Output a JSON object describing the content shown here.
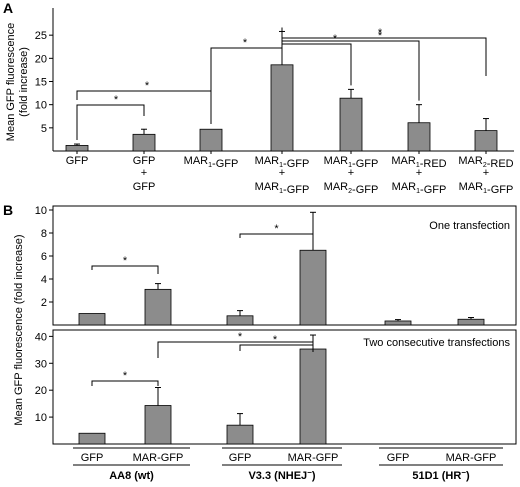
{
  "colors": {
    "bar": "#8c8c8c",
    "line": "#000000"
  },
  "panelA": {
    "letter": "A",
    "ylabel_line1": "Mean GFP fluorescence",
    "ylabel_line2": "(fold increase)",
    "categories": [
      [
        "GFP"
      ],
      [
        "GFP",
        "+",
        "GFP"
      ],
      [
        "MAR₁-GFP"
      ],
      [
        "MAR₁-GFP",
        "+",
        "MAR₁-GFP"
      ],
      [
        "MAR₁-GFP",
        "+",
        "MAR₂-GFP"
      ],
      [
        "MAR₁-RED",
        "+",
        "MAR₁-GFP"
      ],
      [
        "MAR₂-RED",
        "+",
        "MAR₁-GFP"
      ]
    ],
    "significance_mark": "*"
  },
  "panelB": {
    "letter": "B",
    "ylabel": "Mean GFP fluorescence (fold increase)",
    "top_label": "One transfection",
    "bottom_label": "Two consecutive transfections",
    "significance_mark": "*",
    "bar_labels": [
      "GFP",
      "MAR-GFP",
      "GFP",
      "MAR-GFP",
      "GFP",
      "MAR-GFP"
    ],
    "groups": [
      {
        "name": "AA8",
        "suffix": " (wt)",
        "sup": ""
      },
      {
        "name": "V3.3",
        "suffix": " (NHEJ",
        "sup": "−",
        "close": ")"
      },
      {
        "name": "51D1",
        "suffix": " (HR",
        "sup": "−",
        "close": ")"
      }
    ]
  },
  "chart_data": [
    {
      "type": "bar",
      "panel": "A",
      "ylim": [
        0,
        30
      ],
      "yticks": [
        5,
        10,
        15,
        20,
        25
      ],
      "ytick_labels": [
        "5",
        "10",
        "15",
        "20",
        "25"
      ],
      "ylabel": "Mean GFP fluorescence (fold increase)",
      "categories": [
        "GFP",
        "GFP + GFP",
        "MAR1-GFP",
        "MAR1-GFP + MAR1-GFP",
        "MAR1-GFP + MAR2-GFP",
        "MAR1-RED + MAR1-GFP",
        "MAR2-RED + MAR1-GFP"
      ],
      "values": [
        1.2,
        3.6,
        4.7,
        18.6,
        11.4,
        6.1,
        4.4
      ],
      "errors": [
        0.3,
        1.1,
        0,
        7.2,
        1.9,
        3.9,
        2.6
      ],
      "significance": [
        [
          0,
          1
        ],
        [
          0,
          2
        ],
        [
          2,
          3
        ],
        [
          3,
          4
        ],
        [
          3,
          5
        ],
        [
          3,
          6
        ]
      ],
      "grid": false
    },
    {
      "type": "bar",
      "panel": "B-top",
      "title": "One transfection",
      "ylim": [
        0,
        10
      ],
      "yticks": [
        2,
        4,
        6,
        8,
        10
      ],
      "ytick_labels": [
        "2",
        "4",
        "6",
        "8",
        "10"
      ],
      "categories": [
        "AA8 GFP",
        "AA8 MAR-GFP",
        "V3.3 GFP",
        "V3.3 MAR-GFP",
        "51D1 GFP",
        "51D1 MAR-GFP"
      ],
      "values": [
        1.0,
        3.1,
        0.8,
        6.5,
        0.35,
        0.5
      ],
      "errors": [
        0,
        0.5,
        0.45,
        3.3,
        0.12,
        0.15
      ],
      "significance": [
        [
          0,
          1
        ],
        [
          2,
          3
        ]
      ],
      "grid": false
    },
    {
      "type": "bar",
      "panel": "B-bottom",
      "title": "Two consecutive transfections",
      "ylim": [
        0,
        42
      ],
      "yticks": [
        10,
        20,
        30,
        40
      ],
      "ytick_labels": [
        "10",
        "20",
        "30",
        "40"
      ],
      "categories": [
        "AA8 GFP",
        "AA8 MAR-GFP",
        "V3.3 GFP",
        "V3.3 MAR-GFP",
        "51D1 GFP",
        "51D1 MAR-GFP"
      ],
      "values": [
        4,
        14.3,
        7,
        35.3,
        0,
        0
      ],
      "errors": [
        0,
        6.7,
        4.3,
        5.2,
        0,
        0
      ],
      "significance": [
        [
          0,
          1
        ],
        [
          1,
          3
        ],
        [
          2,
          3
        ]
      ],
      "grid": false
    }
  ]
}
